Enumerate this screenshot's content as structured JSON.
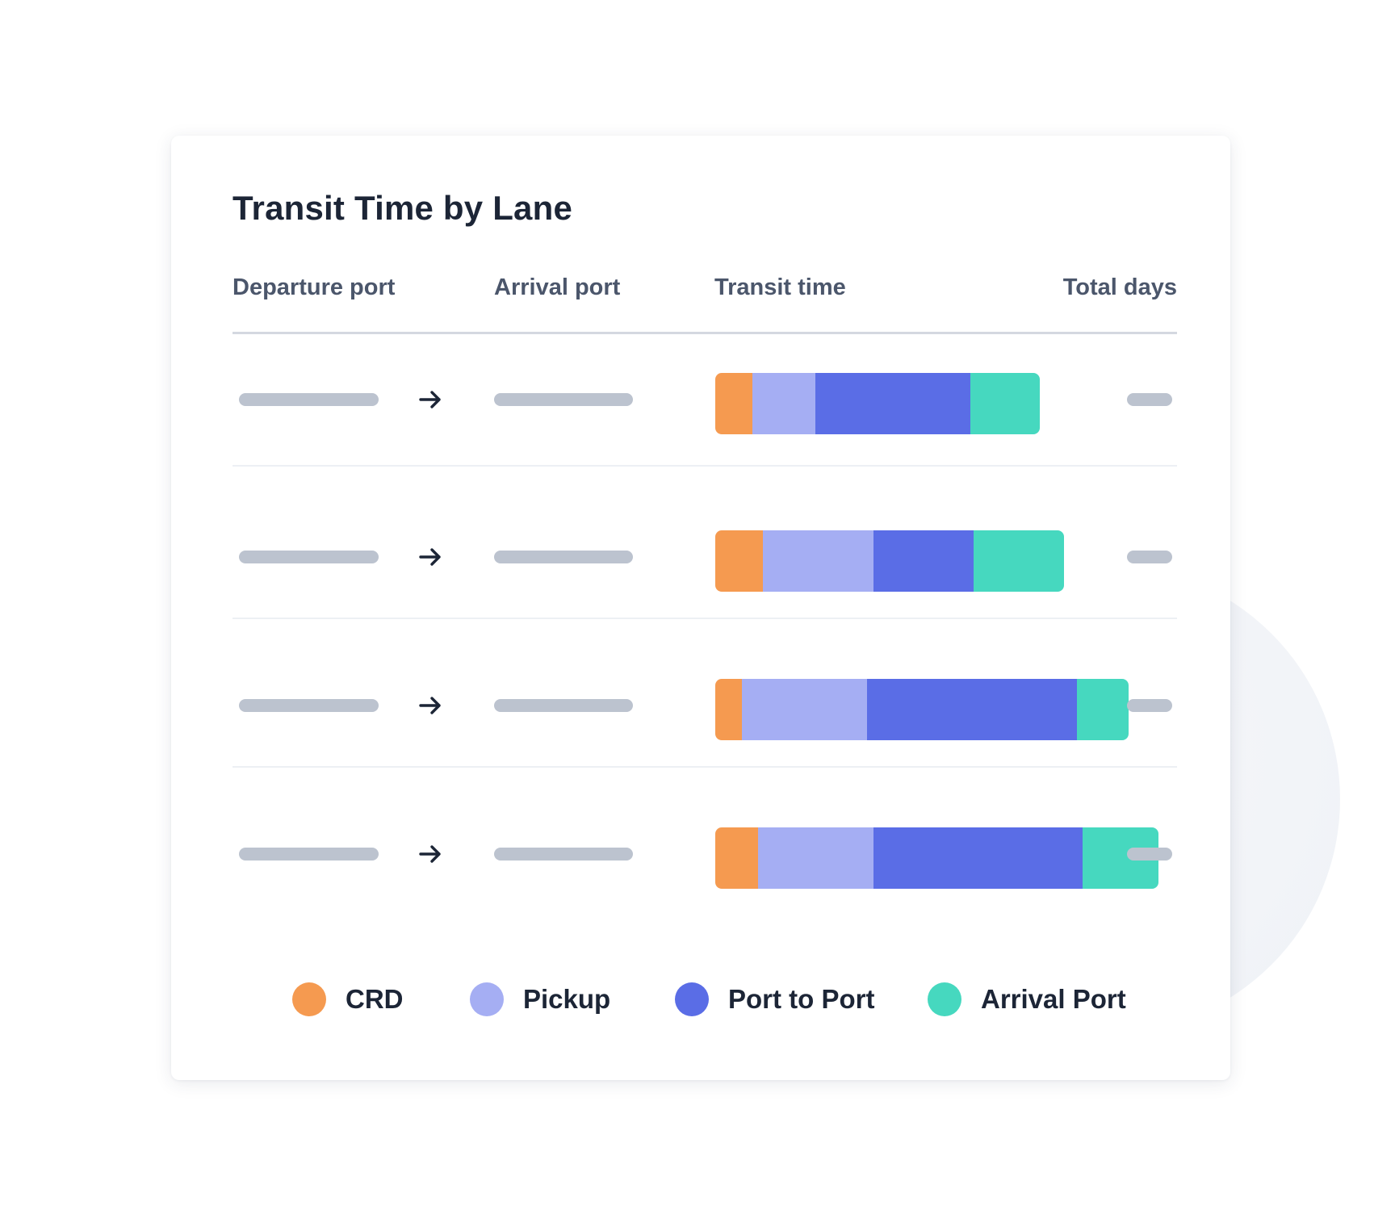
{
  "colors": {
    "crd": "#f59a50",
    "pickup": "#a5aef3",
    "port_to_port": "#5a6de6",
    "arrival_port": "#46d8bf",
    "placeholder": "#bcc3cf"
  },
  "icons": {
    "row_arrow": "arrow-right-icon"
  },
  "chart_data": {
    "type": "bar",
    "stacked": true,
    "orientation": "horizontal",
    "title": "Transit Time by Lane",
    "columns": [
      "Departure port",
      "Arrival port",
      "Transit time",
      "Total days"
    ],
    "segments": [
      "CRD",
      "Pickup",
      "Port to Port",
      "Arrival Port"
    ],
    "series": [
      {
        "name": "CRD",
        "values": [
          2.5,
          3.2,
          1.8,
          2.9
        ]
      },
      {
        "name": "Pickup",
        "values": [
          4.3,
          7.5,
          8.5,
          7.8
        ]
      },
      {
        "name": "Port to Port",
        "values": [
          10.5,
          6.8,
          14.2,
          14.2
        ]
      },
      {
        "name": "Arrival Port",
        "values": [
          4.7,
          6.1,
          3.5,
          5.1
        ]
      }
    ],
    "legend": [
      {
        "label": "CRD",
        "color": "#f59a50"
      },
      {
        "label": "Pickup",
        "color": "#a5aef3"
      },
      {
        "label": "Port to Port",
        "color": "#5a6de6"
      },
      {
        "label": "Arrival Port",
        "color": "#46d8bf"
      }
    ],
    "legend_position": "bottom",
    "xlim": [
      0,
      35
    ],
    "grid": false
  }
}
